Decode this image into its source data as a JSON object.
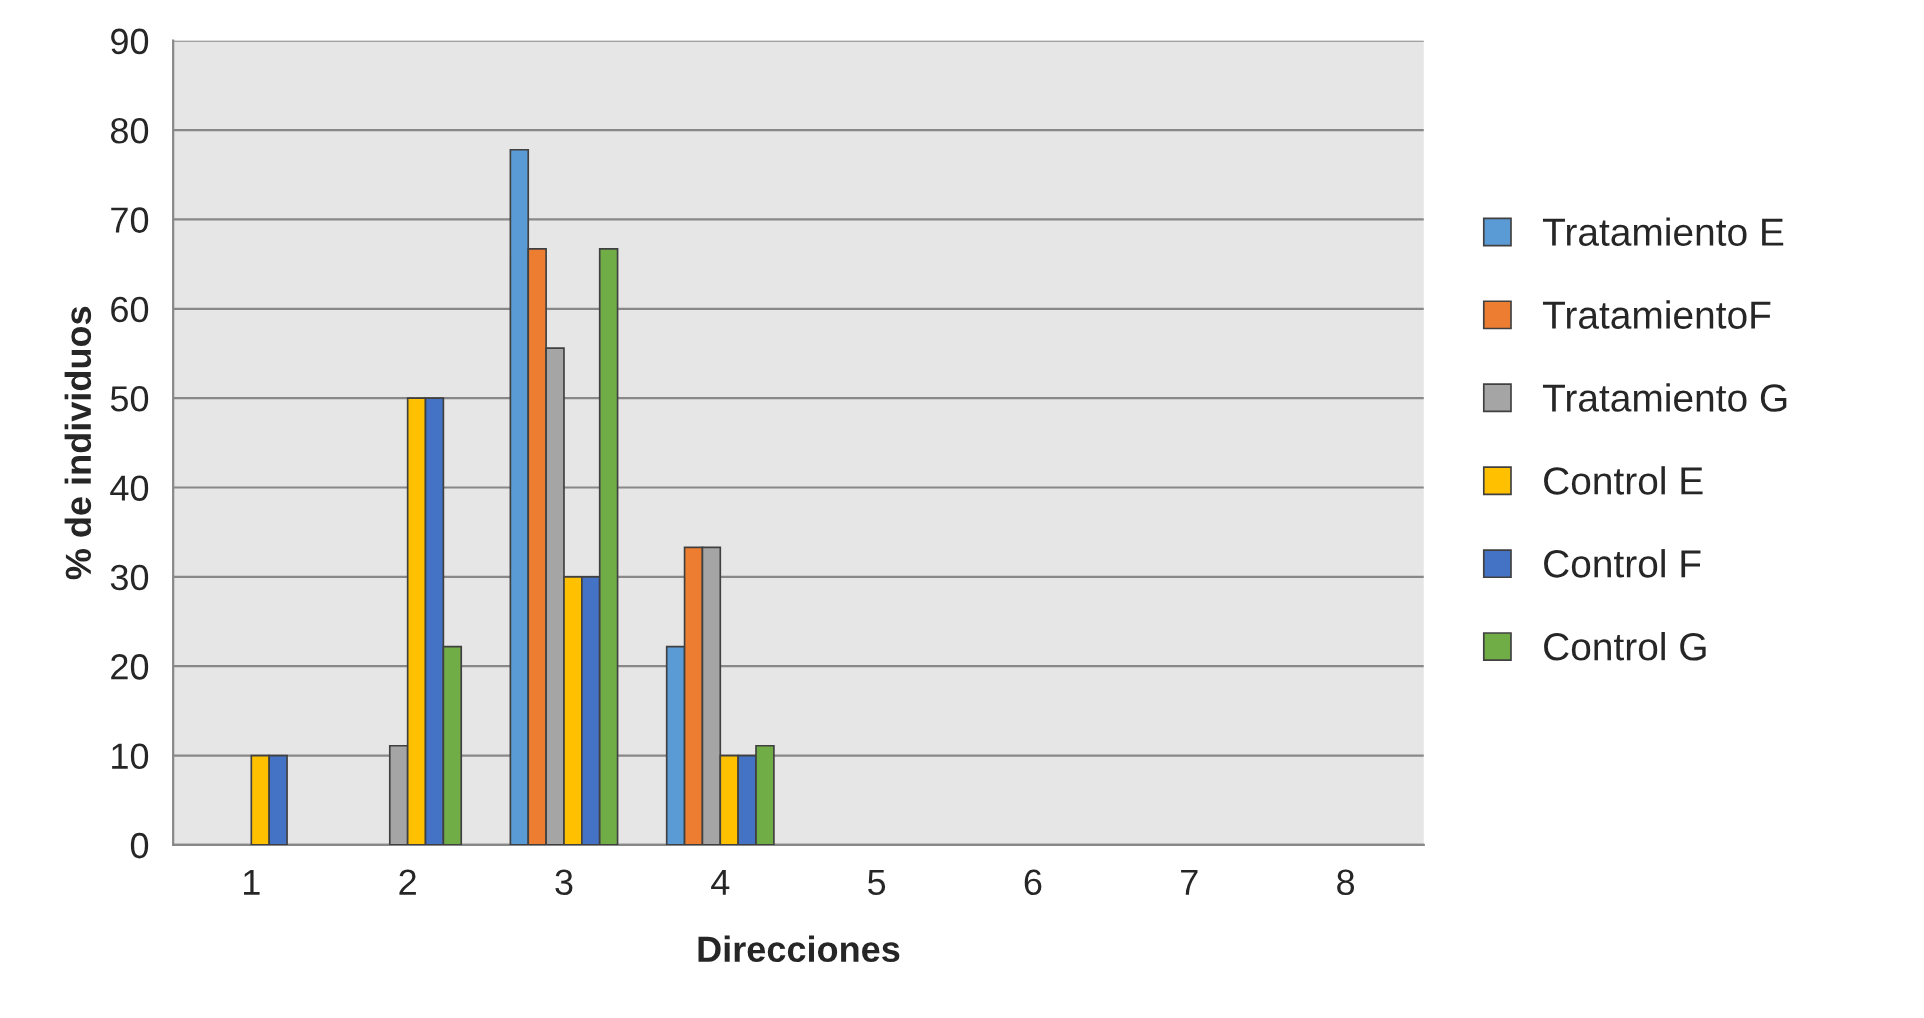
{
  "chart_data": {
    "type": "bar",
    "xlabel": "Direcciones",
    "ylabel": "% de individuos",
    "categories": [
      "1",
      "2",
      "3",
      "4",
      "5",
      "6",
      "7",
      "8"
    ],
    "series": [
      {
        "name": "Tratamiento E",
        "color": "#5b9bd5",
        "values": [
          null,
          null,
          77.8,
          22.2,
          null,
          null,
          null,
          null
        ]
      },
      {
        "name": "TratamientoF",
        "color": "#ed7d31",
        "values": [
          null,
          null,
          66.7,
          33.3,
          null,
          null,
          null,
          null
        ]
      },
      {
        "name": "Tratamiento G",
        "color": "#a5a5a5",
        "values": [
          null,
          11.1,
          55.6,
          33.3,
          null,
          null,
          null,
          null
        ]
      },
      {
        "name": "Control E",
        "color": "#ffc000",
        "values": [
          10,
          50,
          30,
          10,
          null,
          null,
          null,
          null
        ]
      },
      {
        "name": "Control F",
        "color": "#4472c4",
        "values": [
          10,
          50,
          30,
          10,
          null,
          null,
          null,
          null
        ]
      },
      {
        "name": "Control G",
        "color": "#70ad47",
        "values": [
          null,
          22.2,
          66.7,
          11.1,
          null,
          null,
          null,
          null
        ]
      }
    ],
    "ylim": [
      0,
      90
    ],
    "yticks": [
      0,
      10,
      20,
      30,
      40,
      50,
      60,
      70,
      80,
      90
    ],
    "grid": "y",
    "legend": "right"
  }
}
